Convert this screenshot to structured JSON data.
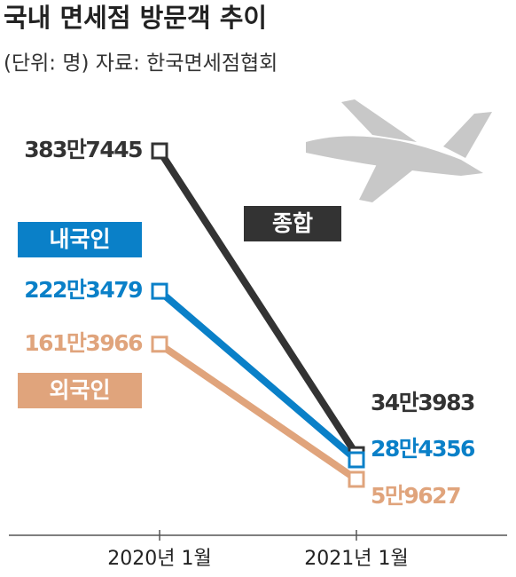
{
  "chart_data": {
    "type": "line",
    "title": "국내 면세점 방문객 추이",
    "subtitle": "(단위: 명) 자료: 한국면세점협회",
    "categories": [
      "2020년 1월",
      "2021년 1월"
    ],
    "series": [
      {
        "name": "종합",
        "color": "#333333",
        "values": [
          3837445,
          343983
        ],
        "value_labels": [
          "383만7445",
          "34만3983"
        ]
      },
      {
        "name": "내국인",
        "color": "#0a80c8",
        "values": [
          2223479,
          284356
        ],
        "value_labels": [
          "222만3479",
          "28만4356"
        ]
      },
      {
        "name": "외국인",
        "color": "#e0a47c",
        "values": [
          1613966,
          59627
        ],
        "value_labels": [
          "161만3966",
          "5만9627"
        ]
      }
    ]
  }
}
